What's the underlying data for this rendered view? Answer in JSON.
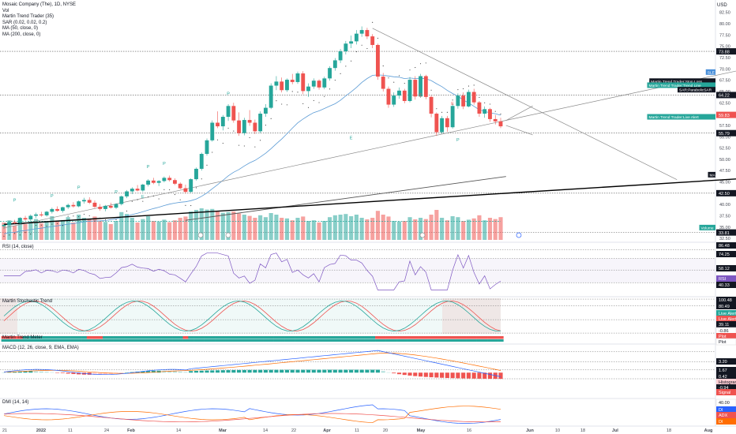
{
  "legend": {
    "title": "Mosaic Company (The), 1D, NYSE",
    "lines": [
      "Vol",
      "Martin Trend Trader (35)",
      "SAR (0.02, 0.02, 0.2)",
      "MA (50, close, 0)",
      "MA (200, close, 0)"
    ]
  },
  "panes": {
    "rsi_label": "RSI (14, close)",
    "stoch_label": "Martin Stochastic Trend",
    "stoch_sub_label": "Martin Trend Meter",
    "macd_label": "MACD (12, 26, close, 9, EMA, EMA)",
    "dmi_label": "DMI (14, 14)"
  },
  "currency": "USD",
  "colors": {
    "up": "#26a69a",
    "down": "#ef5350",
    "ma50": "#5b9bd5",
    "ma200": "#555555",
    "trend": "#888888",
    "sar": "#222222",
    "rsi": "#7e57c2",
    "stoch_k": "#26a69a",
    "stoch_d": "#ef5350",
    "macd_line": "#2962ff",
    "signal_line": "#ff6d00",
    "dmi_plus": "#2962ff",
    "dmi_minus": "#ff6d00",
    "adx": "#ef5350"
  },
  "chart_data": {
    "type": "candlestick",
    "symbol": "MOS",
    "interval": "1D",
    "exchange": "NYSE",
    "x_ticks": [
      "21",
      "2022",
      "11",
      "24",
      "Feb",
      "14",
      "Mar",
      "14",
      "22",
      "Apr",
      "11",
      "20",
      "May",
      "16",
      "Jun",
      "10",
      "18",
      "Jul",
      "18",
      "Aug"
    ],
    "price_ticks": [
      "82.50",
      "80.00",
      "77.50",
      "75.00",
      "72.50",
      "70.00",
      "67.50",
      "65.00",
      "62.50",
      "60.00",
      "57.50",
      "55.00",
      "52.50",
      "50.00",
      "47.50",
      "45.00",
      "42.50",
      "40.00",
      "37.50",
      "35.00",
      "32.50"
    ],
    "price_range": [
      32.0,
      83.5
    ],
    "price_badges": [
      {
        "text": "73.88",
        "value": 73.88,
        "fill": "#131722",
        "color": "#ffffff"
      },
      {
        "text": "64.22",
        "value": 64.22,
        "fill": "#131722",
        "color": "#ffffff"
      },
      {
        "text": "59.83",
        "value": 59.83,
        "fill": "#ef5350",
        "color": "#ffffff"
      },
      {
        "text": "55.79",
        "value": 55.79,
        "fill": "#131722",
        "color": "#ffffff"
      },
      {
        "text": "42.50",
        "value": 42.5,
        "fill": "#131722",
        "color": "#ffffff"
      },
      {
        "text": "33.81",
        "value": 33.81,
        "fill": "#131722",
        "color": "#ffffff"
      }
    ],
    "price_tags": [
      {
        "text": "SLE",
        "value": 69.3,
        "fill": "#4a90d9"
      },
      {
        "text": "Martin Trend Trader:Stop Loss",
        "value": 67.3,
        "fill": "#131722"
      },
      {
        "text": "Martin Trend Trader:Trend Line",
        "value": 66.4,
        "fill": "#26a69a"
      },
      {
        "text": "SAR:ParabolicSAR",
        "value": 65.4,
        "fill": "#131722"
      },
      {
        "text": "Martin Trend Trader:Live Alert",
        "value": 59.4,
        "fill": "#26a69a"
      },
      {
        "text": "MA",
        "value": 46.6,
        "fill": "#131722"
      },
      {
        "text": "Volume",
        "value": 34.9,
        "fill": "#26a69a"
      }
    ],
    "rsi_badges": [
      {
        "text": "86.48",
        "fill": "#131722",
        "y": 311
      },
      {
        "text": "74.25",
        "fill": "#131722",
        "y": 322
      },
      {
        "text": "58.12",
        "fill": "#131722",
        "y": 340
      },
      {
        "text": "RSI",
        "fill": "#7e57c2",
        "y": 353
      },
      {
        "text": "40.33",
        "fill": "#131722",
        "y": 361
      }
    ],
    "stoch_badges": [
      {
        "text": "100.48",
        "fill": "#131722",
        "y": 380
      },
      {
        "text": "80.49",
        "fill": "#131722",
        "y": 388
      },
      {
        "text": "Live Alert",
        "fill": "#26a69a",
        "y": 397
      },
      {
        "text": "Live Alert",
        "fill": "#ef5350",
        "y": 404
      },
      {
        "text": "39.11",
        "fill": "#131722",
        "y": 411
      },
      {
        "text": "-0.86",
        "fill": "#ffffff",
        "y": 419
      },
      {
        "text": "Plot",
        "fill": "#ef5350",
        "y": 426
      },
      {
        "text": "Plot",
        "fill": "#ffffff",
        "y": 433
      }
    ],
    "macd_badges": [
      {
        "text": "3.20",
        "fill": "#131722",
        "y": 458
      },
      {
        "text": "1.67",
        "fill": "#131722",
        "y": 469
      },
      {
        "text": "0.42",
        "fill": "#131722",
        "y": 477
      },
      {
        "text": "Histogram",
        "fill": "#ffcdd2",
        "y": 484
      },
      {
        "text": "-0.94",
        "fill": "#131722",
        "y": 491
      },
      {
        "text": "Signal",
        "fill": "#ef5350",
        "y": 497
      }
    ],
    "dmi_badges": [
      {
        "text": "40.00",
        "fill": "#ffffff",
        "y": 510
      },
      {
        "text": "DI",
        "fill": "#2962ff",
        "y": 519
      },
      {
        "text": "ADX",
        "fill": "#ef5350",
        "y": 526
      },
      {
        "text": "DI",
        "fill": "#ff6d00",
        "y": 534
      }
    ],
    "candles": [
      [
        35.2,
        35.8,
        34.6,
        35.5
      ],
      [
        35.5,
        36.4,
        35.1,
        36.1
      ],
      [
        36.1,
        36.6,
        35.7,
        35.9
      ],
      [
        35.9,
        37.2,
        35.6,
        37.0
      ],
      [
        37.0,
        37.5,
        36.4,
        36.7
      ],
      [
        36.7,
        37.8,
        36.3,
        37.5
      ],
      [
        37.5,
        38.2,
        37.0,
        37.8
      ],
      [
        37.8,
        38.4,
        37.3,
        37.6
      ],
      [
        37.6,
        38.6,
        37.3,
        38.4
      ],
      [
        38.4,
        39.3,
        38.0,
        39.0
      ],
      [
        39.0,
        39.6,
        38.4,
        38.6
      ],
      [
        38.6,
        39.5,
        38.2,
        39.4
      ],
      [
        39.4,
        40.2,
        39.0,
        39.9
      ],
      [
        39.9,
        40.5,
        39.3,
        39.6
      ],
      [
        39.6,
        40.9,
        39.4,
        40.7
      ],
      [
        40.7,
        41.5,
        40.2,
        41.0
      ],
      [
        41.0,
        41.6,
        40.1,
        40.4
      ],
      [
        40.4,
        40.9,
        39.2,
        39.5
      ],
      [
        39.5,
        40.1,
        38.6,
        39.0
      ],
      [
        39.0,
        39.9,
        38.5,
        39.7
      ],
      [
        39.7,
        40.4,
        39.1,
        39.3
      ],
      [
        39.3,
        40.3,
        39.0,
        40.1
      ],
      [
        40.1,
        42.0,
        39.8,
        41.8
      ],
      [
        41.8,
        43.2,
        41.4,
        42.9
      ],
      [
        42.9,
        43.8,
        42.3,
        43.5
      ],
      [
        43.5,
        44.3,
        42.9,
        43.1
      ],
      [
        43.1,
        44.6,
        42.8,
        44.4
      ],
      [
        44.4,
        45.6,
        44.0,
        45.3
      ],
      [
        45.3,
        45.9,
        44.5,
        44.8
      ],
      [
        44.8,
        45.4,
        44.1,
        45.2
      ],
      [
        45.2,
        46.2,
        44.9,
        45.9
      ],
      [
        45.9,
        46.4,
        45.1,
        45.4
      ],
      [
        45.4,
        45.8,
        44.3,
        44.6
      ],
      [
        44.6,
        44.9,
        43.4,
        43.6
      ],
      [
        43.6,
        44.4,
        42.4,
        42.8
      ],
      [
        42.8,
        45.8,
        42.6,
        45.6
      ],
      [
        45.6,
        48.2,
        45.3,
        47.9
      ],
      [
        47.9,
        51.5,
        47.5,
        51.2
      ],
      [
        51.2,
        54.6,
        50.8,
        54.2
      ],
      [
        54.2,
        58.6,
        53.9,
        58.1
      ],
      [
        58.1,
        60.6,
        56.9,
        57.3
      ],
      [
        57.3,
        59.8,
        56.4,
        59.4
      ],
      [
        59.4,
        62.2,
        58.5,
        61.8
      ],
      [
        61.8,
        62.5,
        58.1,
        58.6
      ],
      [
        58.6,
        60.4,
        55.2,
        55.8
      ],
      [
        55.8,
        59.2,
        55.3,
        58.7
      ],
      [
        58.7,
        60.9,
        57.4,
        58.1
      ],
      [
        58.1,
        58.8,
        55.6,
        56.2
      ],
      [
        56.2,
        60.6,
        55.8,
        60.1
      ],
      [
        60.1,
        62.2,
        59.4,
        61.4
      ],
      [
        61.4,
        66.8,
        61.1,
        66.3
      ],
      [
        66.3,
        68.4,
        65.3,
        67.2
      ],
      [
        67.2,
        68.1,
        64.8,
        65.3
      ],
      [
        65.3,
        67.9,
        64.9,
        67.6
      ],
      [
        67.6,
        68.9,
        66.6,
        67.1
      ],
      [
        67.1,
        69.4,
        66.7,
        69.0
      ],
      [
        69.0,
        69.5,
        64.4,
        65.1
      ],
      [
        65.1,
        66.8,
        63.8,
        66.1
      ],
      [
        66.1,
        67.9,
        65.6,
        67.4
      ],
      [
        67.4,
        67.7,
        65.4,
        65.9
      ],
      [
        65.9,
        68.3,
        65.5,
        67.9
      ],
      [
        67.9,
        70.6,
        67.4,
        70.2
      ],
      [
        70.2,
        72.4,
        69.6,
        71.9
      ],
      [
        71.9,
        74.4,
        71.3,
        73.9
      ],
      [
        73.9,
        76.2,
        73.2,
        75.6
      ],
      [
        75.6,
        77.4,
        74.6,
        76.1
      ],
      [
        76.1,
        78.6,
        75.4,
        77.8
      ],
      [
        77.8,
        79.4,
        77.1,
        78.6
      ],
      [
        78.6,
        79.1,
        76.6,
        77.2
      ],
      [
        77.2,
        77.7,
        74.6,
        75.3
      ],
      [
        75.3,
        75.6,
        67.6,
        68.3
      ],
      [
        68.3,
        69.1,
        65.0,
        65.6
      ],
      [
        65.6,
        66.1,
        61.4,
        62.1
      ],
      [
        62.1,
        64.8,
        61.6,
        64.1
      ],
      [
        64.1,
        65.9,
        63.4,
        65.2
      ],
      [
        65.2,
        65.6,
        62.4,
        62.9
      ],
      [
        62.9,
        68.2,
        62.6,
        67.6
      ],
      [
        67.6,
        68.4,
        63.2,
        63.9
      ],
      [
        63.9,
        68.9,
        63.6,
        68.4
      ],
      [
        68.4,
        68.7,
        63.3,
        63.8
      ],
      [
        63.8,
        64.1,
        59.3,
        60.1
      ],
      [
        60.1,
        60.4,
        55.2,
        56.0
      ],
      [
        56.0,
        59.6,
        55.7,
        59.1
      ],
      [
        59.1,
        59.6,
        56.1,
        57.1
      ],
      [
        57.1,
        62.3,
        56.8,
        61.8
      ],
      [
        61.8,
        64.6,
        61.2,
        64.1
      ],
      [
        64.1,
        64.8,
        61.1,
        61.7
      ],
      [
        61.7,
        65.4,
        61.5,
        64.9
      ],
      [
        64.9,
        65.6,
        62.1,
        62.6
      ],
      [
        62.6,
        62.9,
        59.4,
        60.1
      ],
      [
        60.1,
        61.7,
        59.2,
        61.1
      ],
      [
        61.1,
        61.4,
        58.3,
        58.9
      ],
      [
        58.9,
        59.8,
        57.7,
        58.4
      ],
      [
        58.4,
        59.2,
        56.9,
        57.3
      ]
    ],
    "volumes": [
      [
        0.55,
        "#ef5350"
      ],
      [
        0.62,
        "#26a69a"
      ],
      [
        0.45,
        "#ef5350"
      ],
      [
        0.7,
        "#26a69a"
      ],
      [
        0.5,
        "#ef5350"
      ],
      [
        0.58,
        "#26a69a"
      ],
      [
        0.66,
        "#26a69a"
      ],
      [
        0.52,
        "#ef5350"
      ],
      [
        0.6,
        "#26a69a"
      ],
      [
        0.75,
        "#26a69a"
      ],
      [
        0.58,
        "#ef5350"
      ],
      [
        0.63,
        "#26a69a"
      ],
      [
        0.72,
        "#26a69a"
      ],
      [
        0.55,
        "#ef5350"
      ],
      [
        0.8,
        "#26a69a"
      ],
      [
        0.7,
        "#26a69a"
      ],
      [
        0.65,
        "#ef5350"
      ],
      [
        0.74,
        "#ef5350"
      ],
      [
        0.6,
        "#ef5350"
      ],
      [
        0.57,
        "#26a69a"
      ],
      [
        0.5,
        "#ef5350"
      ],
      [
        0.6,
        "#26a69a"
      ],
      [
        0.88,
        "#26a69a"
      ],
      [
        0.82,
        "#26a69a"
      ],
      [
        0.7,
        "#26a69a"
      ],
      [
        0.55,
        "#ef5350"
      ],
      [
        0.66,
        "#26a69a"
      ],
      [
        0.75,
        "#26a69a"
      ],
      [
        0.6,
        "#ef5350"
      ],
      [
        0.58,
        "#26a69a"
      ],
      [
        0.64,
        "#26a69a"
      ],
      [
        0.56,
        "#ef5350"
      ],
      [
        0.62,
        "#ef5350"
      ],
      [
        0.7,
        "#ef5350"
      ],
      [
        0.74,
        "#ef5350"
      ],
      [
        0.9,
        "#26a69a"
      ],
      [
        0.95,
        "#26a69a"
      ],
      [
        1.0,
        "#26a69a"
      ],
      [
        0.96,
        "#26a69a"
      ],
      [
        0.98,
        "#26a69a"
      ],
      [
        0.92,
        "#ef5350"
      ],
      [
        0.86,
        "#26a69a"
      ],
      [
        0.88,
        "#26a69a"
      ],
      [
        0.9,
        "#ef5350"
      ],
      [
        0.84,
        "#ef5350"
      ],
      [
        0.8,
        "#26a69a"
      ],
      [
        0.76,
        "#ef5350"
      ],
      [
        0.7,
        "#ef5350"
      ],
      [
        0.78,
        "#26a69a"
      ],
      [
        0.72,
        "#26a69a"
      ],
      [
        0.85,
        "#26a69a"
      ],
      [
        0.8,
        "#26a69a"
      ],
      [
        0.7,
        "#ef5350"
      ],
      [
        0.68,
        "#26a69a"
      ],
      [
        0.62,
        "#ef5350"
      ],
      [
        0.7,
        "#26a69a"
      ],
      [
        0.74,
        "#ef5350"
      ],
      [
        0.6,
        "#26a69a"
      ],
      [
        0.62,
        "#26a69a"
      ],
      [
        0.55,
        "#ef5350"
      ],
      [
        0.6,
        "#26a69a"
      ],
      [
        0.72,
        "#26a69a"
      ],
      [
        0.78,
        "#26a69a"
      ],
      [
        0.8,
        "#26a69a"
      ],
      [
        0.82,
        "#26a69a"
      ],
      [
        0.75,
        "#26a69a"
      ],
      [
        0.8,
        "#26a69a"
      ],
      [
        0.7,
        "#26a69a"
      ],
      [
        0.65,
        "#ef5350"
      ],
      [
        0.7,
        "#ef5350"
      ],
      [
        0.92,
        "#ef5350"
      ],
      [
        0.8,
        "#ef5350"
      ],
      [
        0.74,
        "#ef5350"
      ],
      [
        0.6,
        "#26a69a"
      ],
      [
        0.58,
        "#26a69a"
      ],
      [
        0.6,
        "#ef5350"
      ],
      [
        0.72,
        "#26a69a"
      ],
      [
        0.65,
        "#ef5350"
      ],
      [
        0.7,
        "#26a69a"
      ],
      [
        0.66,
        "#ef5350"
      ],
      [
        0.8,
        "#ef5350"
      ],
      [
        0.95,
        "#ef5350"
      ],
      [
        0.7,
        "#26a69a"
      ],
      [
        0.62,
        "#ef5350"
      ],
      [
        0.75,
        "#26a69a"
      ],
      [
        0.72,
        "#26a69a"
      ],
      [
        0.6,
        "#ef5350"
      ],
      [
        0.64,
        "#26a69a"
      ],
      [
        0.68,
        "#ef5350"
      ],
      [
        0.78,
        "#ef5350"
      ],
      [
        0.62,
        "#26a69a"
      ],
      [
        0.7,
        "#ef5350"
      ],
      [
        0.66,
        "#ef5350"
      ],
      [
        0.72,
        "#ef5350"
      ]
    ],
    "ma200_endpoints": [
      [
        34,
        36.5
      ],
      [
        94,
        46.2
      ]
    ],
    "trend_lines": [
      {
        "from": [
          0,
          34.8
        ],
        "to": [
          150,
          72.8
        ],
        "color": "#888888",
        "width": 0.7
      },
      {
        "from": [
          69,
          79.0
        ],
        "to": [
          126,
          45.5
        ],
        "color": "#888888",
        "width": 0.7
      },
      {
        "from": [
          0,
          35.6
        ],
        "to": [
          150,
          46.6
        ],
        "color": "#000000",
        "width": 1.4
      }
    ],
    "h_levels": [
      73.88,
      64.22,
      55.79,
      42.5,
      33.81
    ],
    "pattern_labels": [
      {
        "i": 2,
        "v": 40.6,
        "t": "P",
        "c": "#26a69a"
      },
      {
        "i": 9,
        "v": 41.6,
        "t": "P",
        "c": "#26a69a"
      },
      {
        "i": 14,
        "v": 43.4,
        "t": "P",
        "c": "#26a69a"
      },
      {
        "i": 21,
        "v": 42.5,
        "t": "P",
        "c": "#26a69a"
      },
      {
        "i": 27,
        "v": 48.1,
        "t": "P",
        "c": "#26a69a"
      },
      {
        "i": 30,
        "v": 48.8,
        "t": "P",
        "c": "#26a69a"
      },
      {
        "i": 26,
        "v": 41.4,
        "t": "E",
        "c": "#26a69a"
      },
      {
        "i": 42,
        "v": 64.2,
        "t": "P",
        "c": "#26a69a"
      },
      {
        "i": 65,
        "v": 54.4,
        "t": "E",
        "c": "#26a69a"
      },
      {
        "i": 85,
        "v": 54.0,
        "t": "P",
        "c": "#26a69a"
      },
      {
        "i": 78,
        "v": 63.9,
        "t": "E",
        "c": "#ef5350"
      },
      {
        "i": 84,
        "v": 62.0,
        "t": "E",
        "c": "#ef5350"
      }
    ],
    "rsi_range": [
      25,
      95
    ],
    "rsi_levels": [
      86.48,
      74.25,
      58.12,
      40.33
    ],
    "stoch_range": [
      -3,
      103
    ],
    "stoch_levels": [
      100.48,
      80.49,
      39.11,
      -0.86
    ],
    "macd_range": [
      -3.6,
      3.9
    ],
    "macd_levels": [
      3.2,
      1.67,
      0.42,
      -0.94
    ],
    "dmi_range": [
      5,
      50
    ]
  }
}
